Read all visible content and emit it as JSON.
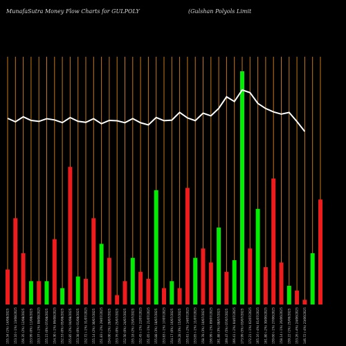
{
  "header": {
    "left_title": "MunafaSutra  Money Flow  Charts for GULPOLY",
    "right_title": "(Gulshan  Polyols Limit"
  },
  "colors": {
    "background": "#000000",
    "up_bar": "#00ee00",
    "down_bar": "#ee1c1c",
    "gridline": "#c87a14",
    "price_line": "#ffffff",
    "tick_text": "#cfcfcf"
  },
  "chart_data": {
    "type": "bar",
    "grid": true,
    "price_line": true,
    "categories": [
      "155.34 (1%) 14/08/2025",
      "153.10 (-1%) 13/08/2025",
      "156.35 (2%) 12/08/2025",
      "153.99 (0%) 11/08/2025",
      "153.37 (-1%) 08/08/2025",
      "155.15 (0%) 07/08/2025",
      "154.30 (-1%) 06/08/2025",
      "152.53 (0%) 05/08/2025",
      "155.85 (2%) 04/08/2025",
      "153.38 (0%) 01/08/2025",
      "152.72 (-1%) 31/07/2025",
      "155.14 (2%) 30/07/2025",
      "151.83 (-2%) 29/07/2025",
      "154.00 (1%) 28/07/2025",
      "153.76 (0%) 25/07/2025",
      "152.50 (0%) 24/07/2025",
      "155.18 (2%) 23/07/2025",
      "152.45 (-1%) 22/07/2025",
      "151.05 (-1%) 21/07/2025",
      "155.88 (3%) 18/07/2025",
      "153.83 (-1%) 17/07/2025",
      "154.17 (0%) 16/07/2025",
      "159.28 (3%) 15/07/2025",
      "155.61 (-2%) 14/07/2025",
      "153.85 (-1%) 11/07/2025",
      "158.78 (3%) 10/07/2025",
      "156.99 (-1%) 09/07/2025",
      "161.88 (3%) 08/07/2025",
      "169.47 (5%) 07/07/2025",
      "166.41 (-2%) 04/07/2025",
      "173.99 (5%) 03/07/2025",
      "172.21 (-1%) 02/07/2025",
      "165.16 (-4%) 01/07/2025",
      "161.80 (-2%) 30/06/2025",
      "159.60 (-1%) 27/06/2025",
      "158.14 (-1%) 26/06/2025",
      "159.22 (1%) 25/06/2025",
      "153.26 (-4%) 24/06/2025",
      "146.72 (-4%) 23/06/2025"
    ],
    "flow": [
      "down",
      "down",
      "down",
      "up",
      "down",
      "up",
      "down",
      "up",
      "down",
      "up",
      "down",
      "down",
      "up",
      "down",
      "down",
      "down",
      "up",
      "down",
      "down",
      "up",
      "down",
      "up",
      "down",
      "down",
      "up",
      "down",
      "down",
      "up",
      "down",
      "up",
      "up",
      "down",
      "up",
      "down",
      "down",
      "down",
      "up",
      "down",
      "down"
    ],
    "values": [
      15,
      37,
      22,
      10,
      10,
      10,
      28,
      7,
      59,
      12,
      11,
      37,
      26,
      20,
      4,
      10,
      20,
      14,
      11,
      49,
      7,
      10,
      7,
      50,
      20,
      24,
      18,
      33,
      14,
      19,
      100,
      24,
      41,
      16,
      54,
      18,
      8,
      6,
      2
    ],
    "ylim": [
      0,
      100
    ],
    "extra_bars": [
      {
        "flow": "up",
        "value": 22
      },
      {
        "flow": "down",
        "value": 45
      }
    ],
    "price": [
      155.34,
      153.1,
      156.35,
      153.99,
      153.37,
      155.15,
      154.3,
      152.53,
      155.85,
      153.38,
      152.72,
      155.14,
      151.83,
      154.0,
      153.76,
      152.5,
      155.18,
      152.45,
      151.05,
      155.88,
      153.83,
      154.17,
      159.28,
      155.61,
      153.85,
      158.78,
      156.99,
      161.88,
      169.47,
      166.41,
      173.99,
      172.21,
      165.16,
      161.8,
      159.6,
      158.14,
      159.22,
      153.26,
      146.72
    ]
  }
}
